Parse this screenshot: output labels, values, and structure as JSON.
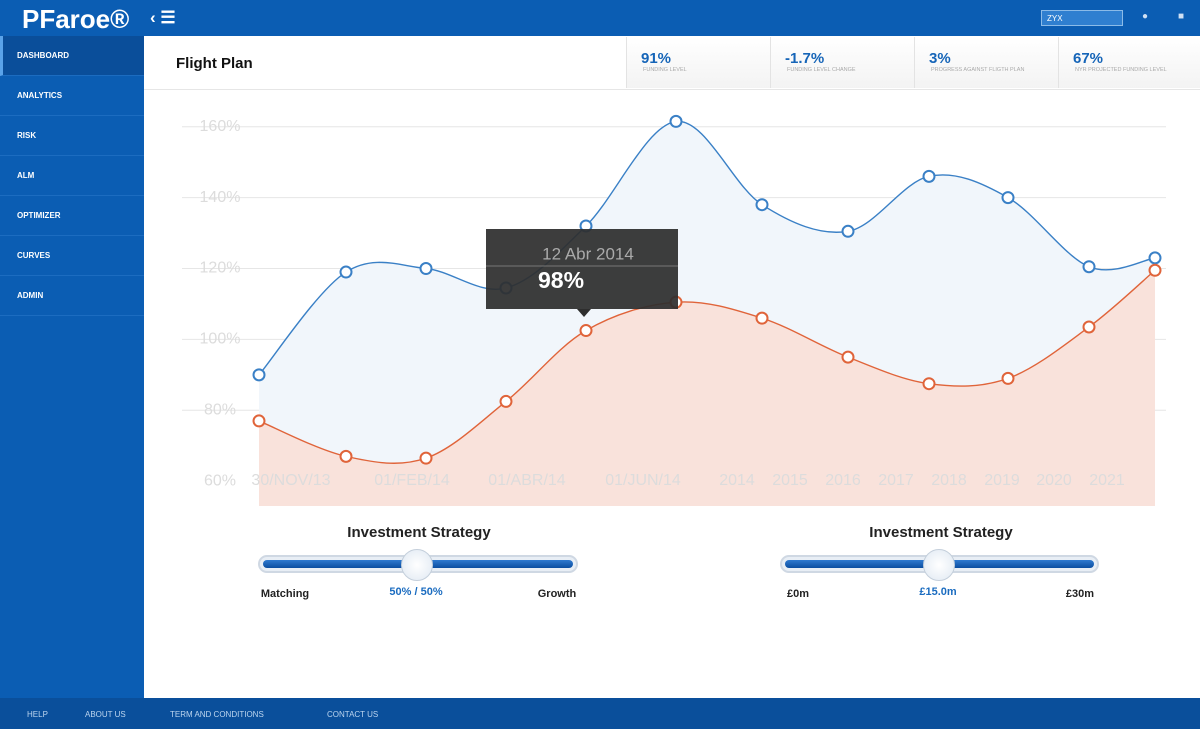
{
  "header": {
    "logo": "PFaroe®",
    "select": "ZYX"
  },
  "nav": [
    "DASHBOARD",
    "ANALYTICS",
    "RISK",
    "ALM",
    "OPTIMIZER",
    "CURVES",
    "ADMIN"
  ],
  "page_title": "Flight Plan",
  "kpis": [
    {
      "value": "91%",
      "label": "FUNDING LEVEL"
    },
    {
      "value": "-1.7%",
      "label": "FUNDING LEVEL CHANGE"
    },
    {
      "value": "3%",
      "label": "PROGRESS AGAINST FLIGTH PLAN"
    },
    {
      "value": "67%",
      "label": "NYR PROJECTED FUNDING LEVEL"
    }
  ],
  "chart_data": {
    "type": "area",
    "categories": [
      "30/NOV/13",
      "01/FEB/14",
      "01/ABR/14",
      "01/JUN/14",
      "2014",
      "2015",
      "2016",
      "2017",
      "2018",
      "2019",
      "2020",
      "2021"
    ],
    "series": [
      {
        "color": "#3a80c6",
        "values": [
          90,
          119,
          120,
          114.5,
          132,
          161.5,
          138,
          130.5,
          146,
          140,
          120.5,
          123
        ]
      },
      {
        "color": "#e0643a",
        "values": [
          77,
          67,
          66.5,
          82.5,
          102.5,
          110.5,
          106,
          95,
          87.5,
          89,
          103.5,
          119.5
        ]
      }
    ],
    "ylim": [
      53,
      165
    ],
    "yticks": [
      {
        "value": 60,
        "label": "60%"
      },
      {
        "value": 80,
        "label": "80%"
      },
      {
        "value": 100,
        "label": "100%"
      },
      {
        "value": 120,
        "label": "120%"
      },
      {
        "value": 140,
        "label": "140%"
      },
      {
        "value": 160,
        "label": "160%"
      }
    ],
    "grid": true,
    "tooltip": {
      "title": "12 Abr 2014",
      "value": "98%"
    }
  },
  "sliders": [
    {
      "title": "Investment Strategy",
      "min_label": "Matching",
      "value_label": "50% / 50%",
      "max_label": "Growth"
    },
    {
      "title": "Investment Strategy",
      "min_label": "£0m",
      "value_label": "£15.0m",
      "max_label": "£30m"
    }
  ],
  "footer": [
    "HELP",
    "ABOUT US",
    "TERM AND CONDITIONS",
    "CONTACT US"
  ]
}
